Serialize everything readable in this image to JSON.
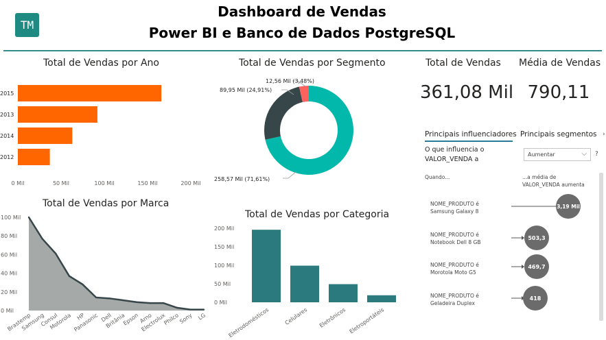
{
  "header": {
    "logo": "TM",
    "title_line1": "Dashboard de Vendas",
    "title_line2": "Power BI e Banco de Dados PostgreSQL"
  },
  "kpis": {
    "total_label": "Total de Vendas",
    "total_value": "361,08 Mil",
    "avg_label": "Média de Vendas",
    "avg_value": "790,11"
  },
  "influencers": {
    "tab_active": "Principais influenciadores",
    "tab_other": "Principais segmentos",
    "more_icon": "chevron-right-icon",
    "question_line1": "O que influencia o",
    "question_line2": "VALOR_VENDA a",
    "dropdown_value": "Aumentar",
    "help": "?",
    "col_when": "Quando...",
    "col_avg_line1": "...a média de",
    "col_avg_line2": "VALOR_VENDA aumenta",
    "items": [
      {
        "field": "NOME_PRODUTO é",
        "value": "Samsung Galaxy 8",
        "amount": "3,19 Mil"
      },
      {
        "field": "NOME_PRODUTO é",
        "value": "Notebook Dell 8 GB",
        "amount": "503,3"
      },
      {
        "field": "NOME_PRODUTO é",
        "value": "Morotola Moto G5",
        "amount": "469,7"
      },
      {
        "field": "NOME_PRODUTO é",
        "value": "Geladeira Duplex",
        "amount": "418"
      }
    ]
  },
  "chart_data": [
    {
      "type": "bar",
      "orientation": "horizontal",
      "title": "Total de Vendas por Ano",
      "categories": [
        "2015",
        "2013",
        "2014",
        "2012"
      ],
      "values": [
        166,
        92,
        63,
        37
      ],
      "xlim": [
        0,
        200
      ],
      "x_ticks": [
        "0 Mil",
        "50 Mil",
        "100 Mil",
        "150 Mil",
        "200 Mil"
      ],
      "x_tick_values": [
        0,
        50,
        100,
        150,
        200
      ],
      "color": "#ff6600"
    },
    {
      "type": "pie",
      "style": "donut",
      "title": "Total de Vendas por Segmento",
      "slices": [
        {
          "value": 258.57,
          "label": "258,57 Mil (71,61%)",
          "color": "#01b8aa"
        },
        {
          "value": 89.95,
          "label": "89,95 Mil (24,91%)",
          "color": "#374649"
        },
        {
          "value": 12.56,
          "label": "12,56 Mil (3,48%)",
          "color": "#fd625e"
        }
      ]
    },
    {
      "type": "area",
      "title": "Total de Vendas por Marca",
      "categories": [
        "Brastemp",
        "Samsung",
        "Consul",
        "Motorola",
        "HP",
        "Panasonic",
        "Dell",
        "Britânia",
        "Epson",
        "Arno",
        "Electrolux",
        "Philco",
        "Sony",
        "LG"
      ],
      "values": [
        100,
        77,
        61,
        37,
        28,
        14,
        13,
        11,
        9,
        8,
        8,
        3,
        1,
        1
      ],
      "ylim": [
        0,
        100
      ],
      "y_ticks": [
        "0 Mil",
        "20 Mil",
        "40 Mil",
        "60 Mil",
        "80 Mil",
        "100 Mil"
      ],
      "y_tick_values": [
        0,
        20,
        40,
        60,
        80,
        100
      ],
      "fill": "#a5aaa9",
      "line": "#374649"
    },
    {
      "type": "bar",
      "title": "Total de Vendas por Categoria",
      "categories": [
        "Eletrodomésticos",
        "Celulares",
        "Eletrônicos",
        "Eletroportáteis"
      ],
      "values": [
        196,
        99,
        49,
        19
      ],
      "ylim": [
        0,
        200
      ],
      "y_ticks": [
        "0 Mil",
        "50 Mil",
        "100 Mil",
        "150 Mil",
        "200 Mil"
      ],
      "y_tick_values": [
        0,
        50,
        100,
        150,
        200
      ],
      "color": "#2b7b7e"
    }
  ]
}
